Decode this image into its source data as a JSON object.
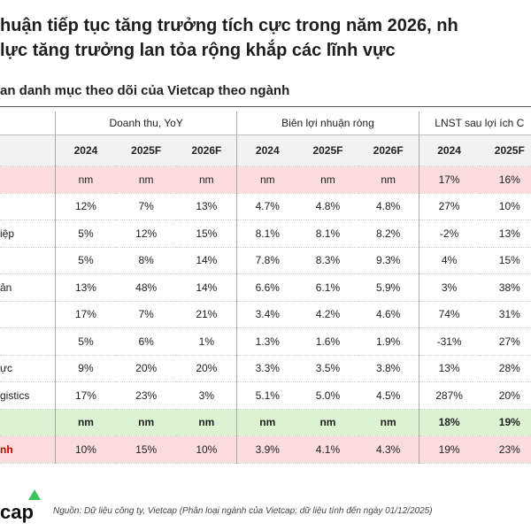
{
  "header": {
    "title_line1": "huận tiếp tục tăng trưởng tích cực trong năm 2026, nh",
    "title_line2": "lực tăng trưởng lan tỏa rộng khắp các lĩnh vực",
    "subtitle": "an danh mục theo dõi của Vietcap theo ngành"
  },
  "table": {
    "groups": [
      "Doanh thu, YoY",
      "Biên lợi nhuận ròng",
      "LNST sau lợi ích C"
    ],
    "years": [
      "2024",
      "2025F",
      "2026F",
      "2024",
      "2025F",
      "2026F",
      "2024",
      "2025F"
    ],
    "rows": [
      {
        "style": "pink",
        "cells": [
          "nm",
          "nm",
          "nm",
          "nm",
          "nm",
          "nm",
          "17%",
          "16%"
        ]
      },
      {
        "cells": [
          "12%",
          "7%",
          "13%",
          "4.7%",
          "4.8%",
          "4.8%",
          "27%",
          "10%"
        ]
      },
      {
        "label": "iệp",
        "cells": [
          "5%",
          "12%",
          "15%",
          "8.1%",
          "8.1%",
          "8.2%",
          "-2%",
          "13%"
        ]
      },
      {
        "cells": [
          "5%",
          "8%",
          "14%",
          "7.8%",
          "8.3%",
          "9.3%",
          "4%",
          "15%"
        ]
      },
      {
        "label": "ản",
        "cells": [
          "13%",
          "48%",
          "14%",
          "6.6%",
          "6.1%",
          "5.9%",
          "3%",
          "38%"
        ]
      },
      {
        "cells": [
          "17%",
          "7%",
          "21%",
          "3.4%",
          "4.2%",
          "4.6%",
          "74%",
          "31%"
        ]
      },
      {
        "cells": [
          "5%",
          "6%",
          "1%",
          "1.3%",
          "1.6%",
          "1.9%",
          "-31%",
          "27%"
        ]
      },
      {
        "label": "ực",
        "cells": [
          "9%",
          "20%",
          "20%",
          "3.3%",
          "3.5%",
          "3.8%",
          "13%",
          "28%"
        ]
      },
      {
        "label": "gistics",
        "cells": [
          "17%",
          "23%",
          "3%",
          "5.1%",
          "5.0%",
          "4.5%",
          "287%",
          "20%"
        ]
      },
      {
        "style": "green",
        "cells": [
          "nm",
          "nm",
          "nm",
          "nm",
          "nm",
          "nm",
          "18%",
          "19%"
        ]
      },
      {
        "style": "pink",
        "label": "nh",
        "cells": [
          "10%",
          "15%",
          "10%",
          "3.9%",
          "4.1%",
          "4.3%",
          "19%",
          "23%"
        ]
      }
    ]
  },
  "footer": {
    "logo": "cap",
    "source": "Nguồn: Dữ liệu công ty, Vietcap (Phân loại ngành của Vietcap; dữ liệu tính đến ngày 01/12/2025)"
  }
}
